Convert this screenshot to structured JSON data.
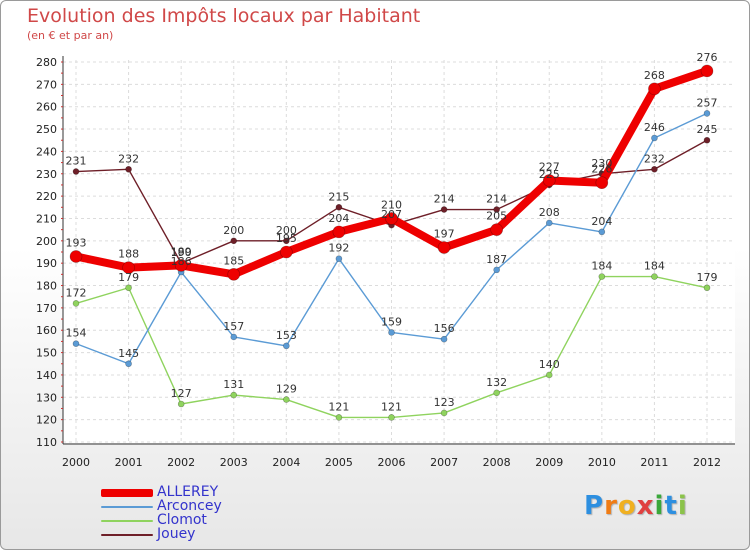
{
  "chart_data": {
    "type": "line",
    "title": "Evolution des Impôts locaux par Habitant",
    "subtitle": "(en € et par an)",
    "categories": [
      "2000",
      "2001",
      "2002",
      "2003",
      "2004",
      "2005",
      "2006",
      "2007",
      "2008",
      "2009",
      "2010",
      "2011",
      "2012"
    ],
    "ylim": [
      110,
      280
    ],
    "yticks": [
      110,
      120,
      130,
      140,
      150,
      160,
      170,
      180,
      190,
      200,
      210,
      220,
      230,
      240,
      250,
      260,
      270,
      280
    ],
    "grid": true,
    "series": [
      {
        "name": "Jouey",
        "color": "#6e1f28",
        "values": [
          231,
          232,
          190,
          200,
          200,
          215,
          207,
          214,
          214,
          225,
          230,
          232,
          245
        ]
      },
      {
        "name": "Clomot",
        "color": "#8fd35e",
        "values": [
          172,
          179,
          127,
          131,
          129,
          121,
          121,
          123,
          132,
          140,
          184,
          184,
          179
        ]
      },
      {
        "name": "Arconcey",
        "color": "#5b9bd5",
        "values": [
          154,
          145,
          186,
          157,
          153,
          192,
          159,
          156,
          187,
          208,
          204,
          246,
          257
        ]
      },
      {
        "name": "ALLEREY",
        "color": "#ee0000",
        "values": [
          193,
          188,
          189,
          185,
          195,
          204,
          210,
          197,
          205,
          227,
          226,
          268,
          276
        ]
      }
    ],
    "legend_position": "bottom-left"
  },
  "legend": [
    {
      "name": "ALLEREY",
      "color": "#ee0000",
      "text_color": "#3333cc"
    },
    {
      "name": "Arconcey",
      "color": "#5b9bd5",
      "text_color": "#3333cc"
    },
    {
      "name": "Clomot",
      "color": "#8fd35e",
      "text_color": "#3333cc"
    },
    {
      "name": "Jouey",
      "color": "#6e1f28",
      "text_color": "#3333cc"
    }
  ],
  "logo": {
    "letters": [
      "P",
      "r",
      "o",
      "x",
      "i",
      "t",
      "i"
    ],
    "colors": [
      "#2d8fe0",
      "#f07c14",
      "#f0b020",
      "#e04040",
      "#3aa83a",
      "#2d8fe0",
      "#8bc34a"
    ]
  }
}
